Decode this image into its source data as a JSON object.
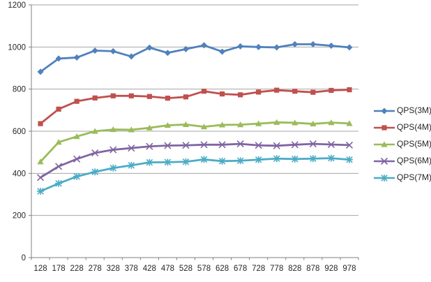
{
  "chart_data": {
    "type": "line",
    "title": "",
    "xlabel": "",
    "ylabel": "",
    "grid": "horizontal",
    "legend_position": "right",
    "background": "#ffffff",
    "gridline_color": "#a6a6a6",
    "axis_color": "#808080",
    "label_color": "#262626",
    "y_axis": {
      "min": 0,
      "max": 1200,
      "step": 200,
      "tick_labels": [
        "0",
        "200",
        "400",
        "600",
        "800",
        "1000",
        "1200"
      ]
    },
    "x_categories": [
      "128",
      "178",
      "228",
      "278",
      "328",
      "378",
      "428",
      "478",
      "528",
      "578",
      "628",
      "678",
      "728",
      "778",
      "828",
      "878",
      "928",
      "978"
    ],
    "series": [
      {
        "name": "QPS(3M)",
        "color": "#4F81BD",
        "marker": "diamond",
        "values": [
          882,
          945,
          950,
          983,
          980,
          955,
          997,
          972,
          990,
          1008,
          978,
          1003,
          1000,
          998,
          1013,
          1013,
          1006,
          998
        ]
      },
      {
        "name": "QPS(4M)",
        "color": "#C0504D",
        "marker": "square",
        "values": [
          636,
          705,
          742,
          758,
          768,
          768,
          765,
          757,
          763,
          790,
          777,
          773,
          786,
          795,
          790,
          785,
          794,
          797
        ]
      },
      {
        "name": "QPS(5M)",
        "color": "#9BBB59",
        "marker": "triangle",
        "values": [
          455,
          548,
          575,
          600,
          608,
          607,
          616,
          628,
          632,
          621,
          630,
          631,
          636,
          642,
          640,
          635,
          641,
          637
        ]
      },
      {
        "name": "QPS(6M)",
        "color": "#8064A2",
        "marker": "x",
        "values": [
          380,
          433,
          468,
          497,
          512,
          520,
          528,
          532,
          533,
          536,
          536,
          540,
          533,
          531,
          536,
          540,
          537,
          534
        ]
      },
      {
        "name": "QPS(7M)",
        "color": "#4BACC6",
        "marker": "asterisk",
        "values": [
          315,
          352,
          385,
          407,
          425,
          438,
          452,
          453,
          455,
          466,
          458,
          460,
          465,
          470,
          468,
          470,
          472,
          465
        ]
      }
    ]
  }
}
